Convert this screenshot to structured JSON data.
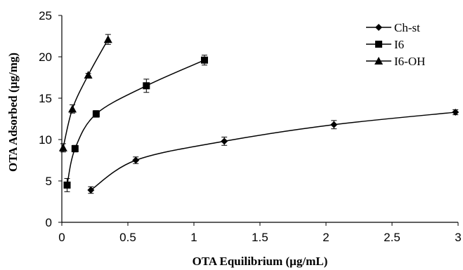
{
  "chart_data": {
    "type": "scatter",
    "xlabel": "OTA Equilibrium (µg/mL)",
    "ylabel": "OTA Adsorbed (µg/mg)",
    "xlim": [
      0,
      3
    ],
    "ylim": [
      0,
      25
    ],
    "xticks": [
      "0",
      "0.5",
      "1",
      "1.5",
      "2",
      "2.5",
      "3"
    ],
    "xtick_values": [
      0,
      0.5,
      1,
      1.5,
      2,
      2.5,
      3
    ],
    "yticks": [
      "0",
      "5",
      "10",
      "15",
      "20",
      "25"
    ],
    "ytick_values": [
      0,
      5,
      10,
      15,
      20,
      25
    ],
    "grid": false,
    "legend_position": "top-right",
    "series": [
      {
        "name": "Ch-st",
        "marker": "diamond",
        "x": [
          0.22,
          0.56,
          1.23,
          2.06,
          2.98
        ],
        "y": [
          3.9,
          7.5,
          9.8,
          11.8,
          13.3
        ],
        "err": [
          0.4,
          0.4,
          0.5,
          0.5,
          0.3
        ]
      },
      {
        "name": "I6",
        "marker": "square",
        "x": [
          0.04,
          0.1,
          0.26,
          0.64,
          1.08
        ],
        "y": [
          4.5,
          8.9,
          13.1,
          16.5,
          19.6
        ],
        "err": [
          0.8,
          0.4,
          0.4,
          0.8,
          0.6
        ]
      },
      {
        "name": "I6-OH",
        "marker": "triangle",
        "x": [
          0.01,
          0.08,
          0.2,
          0.35
        ],
        "y": [
          9.0,
          13.7,
          17.8,
          22.1
        ],
        "err": [
          0.5,
          0.5,
          0.2,
          0.6
        ]
      }
    ]
  }
}
